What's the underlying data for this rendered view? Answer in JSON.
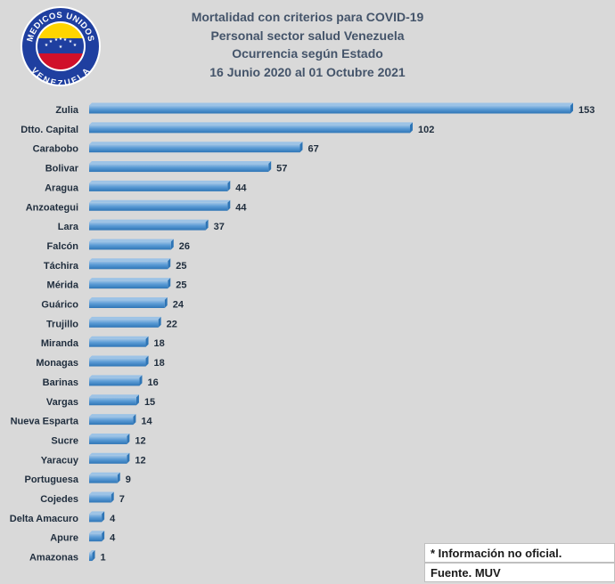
{
  "logo": {
    "top_text": "MEDICOS UNIDOS",
    "bottom_text": "VENEZUELA"
  },
  "notes": {
    "disclaimer": "* Información no oficial.",
    "source": "Fuente. MUV"
  },
  "colors": {
    "background": "#d9d9d9",
    "bar_fill": "#5b9bd5",
    "bar_dark": "#2e75b6",
    "bar_light": "#9dc3e6",
    "title": "#44546a",
    "label": "#1f2d3d"
  },
  "chart_data": {
    "type": "bar",
    "orientation": "horizontal",
    "title_lines": [
      "Mortalidad con criterios para COVID-19",
      "Personal sector salud Venezuela",
      "Ocurrencia según Estado",
      "16 Junio 2020 al 01 Octubre 2021"
    ],
    "xlabel": "",
    "ylabel": "",
    "xlim": [
      0,
      153
    ],
    "grid": false,
    "legend": "none",
    "categories": [
      "Zulia",
      "Dtto. Capital",
      "Carabobo",
      "Bolivar",
      "Aragua",
      "Anzoategui",
      "Lara",
      "Falcón",
      "Táchira",
      "Mérida",
      "Guárico",
      "Trujillo",
      "Miranda",
      "Monagas",
      "Barinas",
      "Vargas",
      "Nueva Esparta",
      "Sucre",
      "Yaracuy",
      "Portuguesa",
      "Cojedes",
      "Delta Amacuro",
      "Apure",
      "Amazonas"
    ],
    "values": [
      153,
      102,
      67,
      57,
      44,
      44,
      37,
      26,
      25,
      25,
      24,
      22,
      18,
      18,
      16,
      15,
      14,
      12,
      12,
      9,
      7,
      4,
      4,
      1
    ]
  }
}
